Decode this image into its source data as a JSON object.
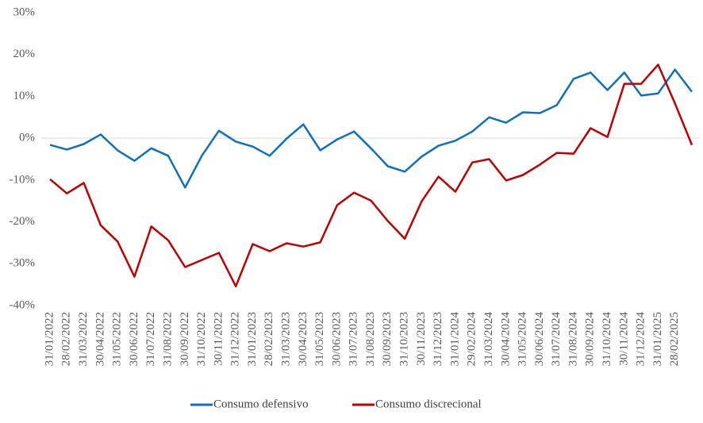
{
  "chart_data": {
    "type": "line",
    "categories": [
      "31/01/2022",
      "28/02/2022",
      "31/03/2022",
      "30/04/2022",
      "31/05/2022",
      "30/06/2022",
      "31/07/2022",
      "31/08/2022",
      "30/09/2022",
      "31/10/2022",
      "30/11/2022",
      "31/12/2022",
      "31/01/2023",
      "28/02/2023",
      "31/03/2023",
      "30/04/2023",
      "31/05/2023",
      "30/06/2023",
      "31/07/2023",
      "31/08/2023",
      "30/09/2023",
      "31/10/2023",
      "30/11/2023",
      "31/12/2023",
      "31/01/2024",
      "29/02/2024",
      "31/03/2024",
      "30/04/2024",
      "31/05/2024",
      "30/06/2024",
      "31/07/2024",
      "31/08/2024",
      "30/09/2024",
      "31/10/2024",
      "30/11/2024",
      "31/12/2024",
      "31/01/2025",
      "28/02/2025",
      null
    ],
    "series": [
      {
        "name": "Consumo defensivo",
        "color": "#0f6fc0",
        "values": [
          -1.6,
          -2.7,
          -1.4,
          0.9,
          -2.9,
          -5.4,
          -2.4,
          -4.2,
          -11.8,
          -4.1,
          1.8,
          -0.8,
          -2,
          -4.2,
          -0.1,
          3.3,
          -2.9,
          -0.3,
          1.6,
          -2.4,
          -6.7,
          -8,
          -4.4,
          -1.8,
          -0.6,
          1.6,
          5,
          3.7,
          6.2,
          6,
          7.9,
          14.2,
          15.7,
          11.5,
          15.7,
          10.2,
          10.7,
          16.4,
          11.1
        ]
      },
      {
        "name": "Consumo discrecional",
        "color": "#c00000",
        "values": [
          -9.8,
          -13.2,
          -10.7,
          -20.8,
          -24.7,
          -33.1,
          -21.1,
          -24.4,
          -30.8,
          -29.1,
          -27.4,
          -35.4,
          -25.3,
          -27,
          -25.1,
          -25.9,
          -24.9,
          -16,
          -13,
          -14.9,
          -19.8,
          -24,
          -15.1,
          -9.2,
          -12.8,
          -5.8,
          -5,
          -10.1,
          -8.8,
          -6.3,
          -3.5,
          -3.7,
          2.4,
          0.3,
          13,
          13,
          17.6,
          8.3,
          -1.6
        ]
      }
    ],
    "ylim": [
      -40,
      30
    ],
    "yticks": [
      {
        "value": -40,
        "label": "-40%"
      },
      {
        "value": -30,
        "label": "-30%"
      },
      {
        "value": -20,
        "label": "-20%"
      },
      {
        "value": -10,
        "label": "-10%"
      },
      {
        "value": 0,
        "label": "0%"
      },
      {
        "value": 10,
        "label": "10%"
      },
      {
        "value": 20,
        "label": "20%"
      },
      {
        "value": 30,
        "label": "30%"
      }
    ],
    "grid": false,
    "legend": "bottom"
  }
}
